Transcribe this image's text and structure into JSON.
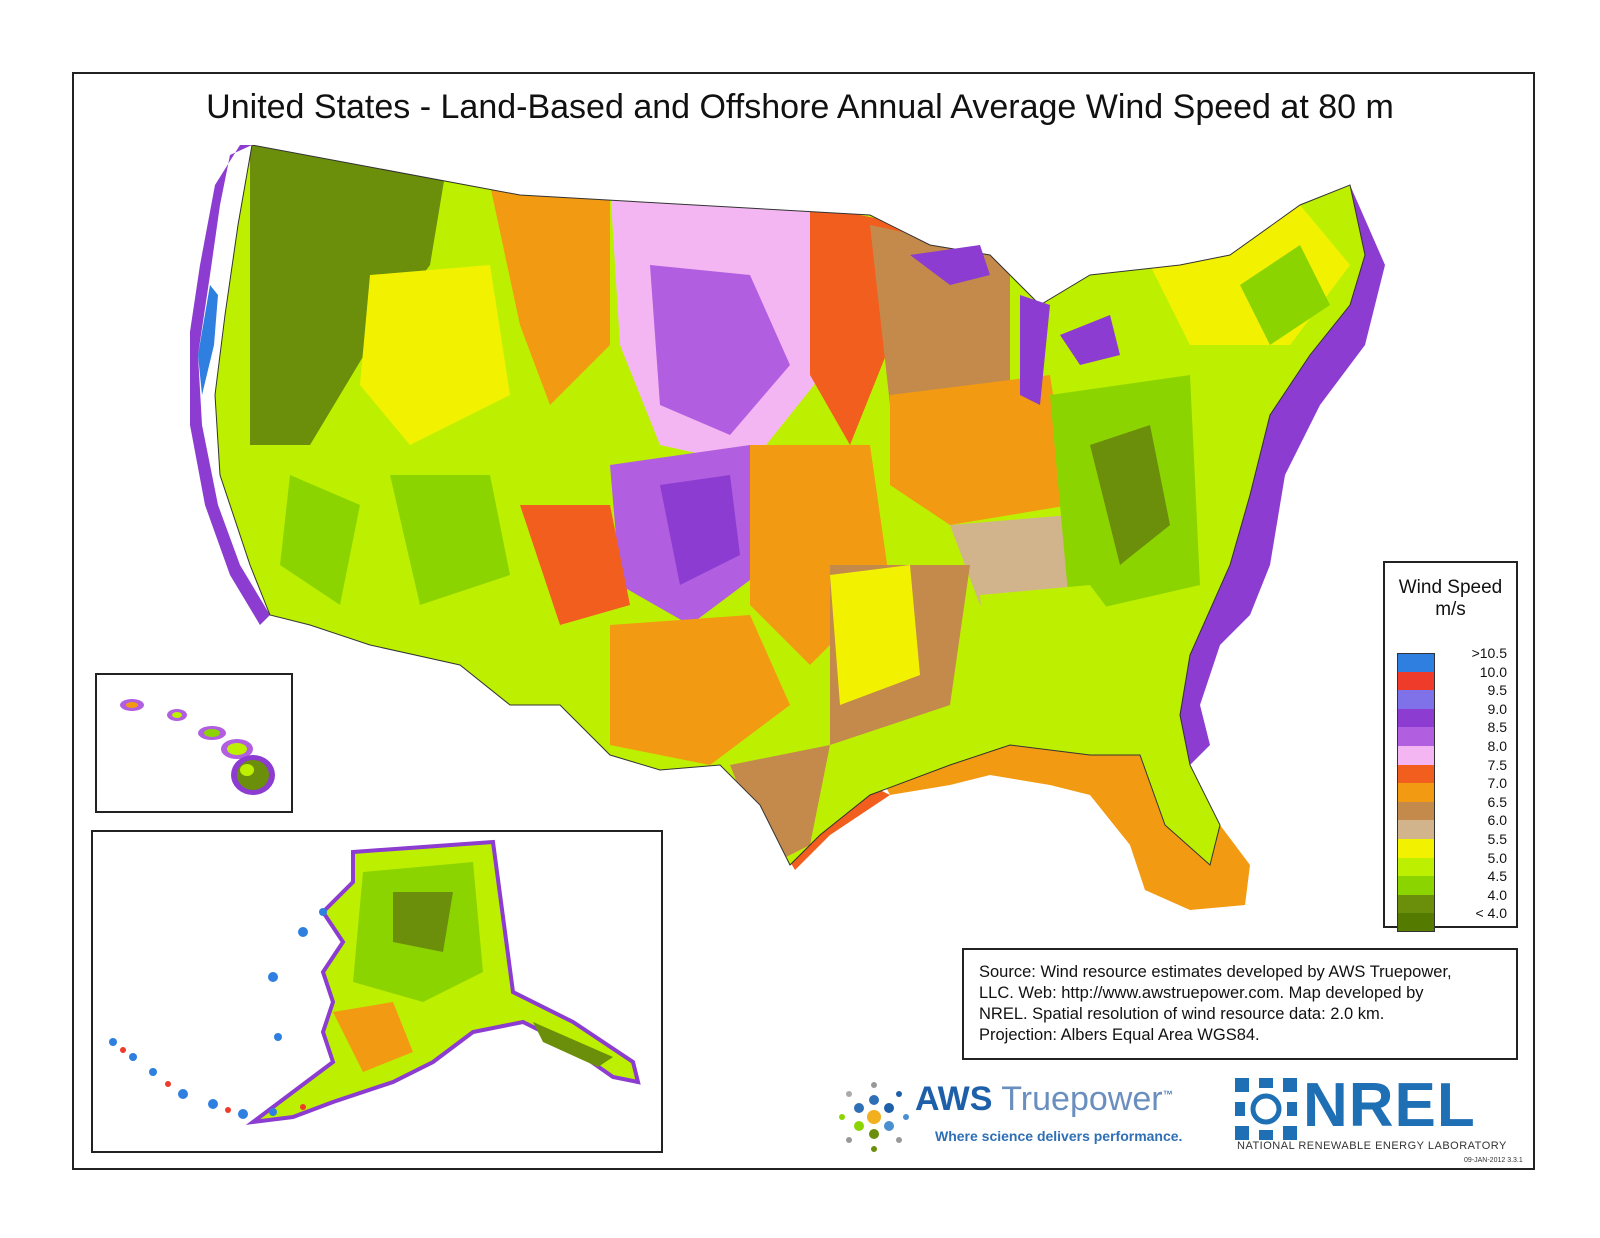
{
  "title": "United States - Land-Based and Offshore Annual Average Wind Speed at 80 m",
  "legend": {
    "title": "Wind Speed",
    "unit": "m/s",
    "items": [
      {
        "label": ">10.5",
        "color": "#2f7fe0"
      },
      {
        "label": "10.0",
        "color": "#ee3b2a"
      },
      {
        "label": "9.5",
        "color": "#7f72e8"
      },
      {
        "label": "9.0",
        "color": "#8c3cd0"
      },
      {
        "label": "8.5",
        "color": "#b25ee0"
      },
      {
        "label": "8.0",
        "color": "#f4b6f2"
      },
      {
        "label": "7.5",
        "color": "#f25e1e"
      },
      {
        "label": "7.0",
        "color": "#f29a12"
      },
      {
        "label": "6.5",
        "color": "#c48a4c"
      },
      {
        "label": "6.0",
        "color": "#d2b48c"
      },
      {
        "label": "5.5",
        "color": "#f2f200"
      },
      {
        "label": "5.0",
        "color": "#bdf000"
      },
      {
        "label": "4.5",
        "color": "#8cd400"
      },
      {
        "label": "4.0",
        "color": "#6b8e0b"
      },
      {
        "label": "< 4.0",
        "color": "#557a00"
      }
    ]
  },
  "source": {
    "lines": [
      "Source: Wind resource estimates developed by AWS Truepower,",
      "LLC.  Web: http://www.awstruepower.com. Map developed by",
      "NREL.  Spatial resolution of wind resource data: 2.0 km.",
      "Projection: Albers Equal Area WGS84."
    ]
  },
  "logos": {
    "aws_bold": "AWS",
    "aws_light": "Truepower",
    "aws_tm": "™",
    "aws_tagline": "Where science delivers performance.",
    "nrel_name": "NREL",
    "nrel_subtitle": "NATIONAL RENEWABLE ENERGY LABORATORY"
  },
  "date_code": "09-JAN-2012 3.3.1"
}
